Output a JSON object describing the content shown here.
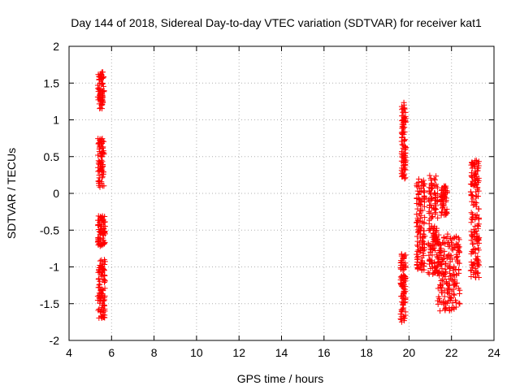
{
  "chart_data": {
    "type": "scatter",
    "title": "Day 144 of 2018, Sidereal Day-to-day VTEC variation (SDTVAR) for receiver kat1",
    "xlabel": "GPS time / hours",
    "ylabel": "SDTVAR / TECUs",
    "xlim": [
      4,
      24
    ],
    "ylim": [
      -2,
      2
    ],
    "xticks": [
      4,
      6,
      8,
      10,
      12,
      14,
      16,
      18,
      20,
      22,
      24
    ],
    "yticks": [
      -2,
      -1.5,
      -1,
      -0.5,
      0,
      0.5,
      1,
      1.5,
      2
    ],
    "ytick_labels": [
      "-2",
      "-1.5",
      "-1",
      "-0.5",
      "0",
      "0.5",
      "1",
      "1.5",
      "2"
    ],
    "grid": true,
    "marker": "+",
    "color": "#ff0000",
    "series": [
      {
        "name": "SDTVAR",
        "clusters": [
          {
            "x": [
              5.35,
              5.65
            ],
            "y": [
              1.15,
              1.65
            ]
          },
          {
            "x": [
              5.35,
              5.65
            ],
            "y": [
              0.08,
              0.75
            ]
          },
          {
            "x": [
              5.35,
              5.7
            ],
            "y": [
              -0.72,
              -0.3
            ]
          },
          {
            "x": [
              5.35,
              5.7
            ],
            "y": [
              -1.7,
              -0.9
            ]
          },
          {
            "x": [
              19.65,
              19.85
            ],
            "y": [
              0.2,
              1.27
            ]
          },
          {
            "x": [
              19.6,
              19.85
            ],
            "y": [
              -1.75,
              -0.8
            ]
          },
          {
            "x": [
              20.35,
              20.75
            ],
            "y": [
              -1.05,
              0.2
            ]
          },
          {
            "x": [
              20.9,
              21.35
            ],
            "y": [
              -1.1,
              0.25
            ]
          },
          {
            "x": [
              21.35,
              22.4
            ],
            "y": [
              -1.6,
              -0.55
            ]
          },
          {
            "x": [
              21.5,
              21.8
            ],
            "y": [
              -0.3,
              0.1
            ]
          },
          {
            "x": [
              22.9,
              23.3
            ],
            "y": [
              -1.15,
              0.45
            ]
          }
        ]
      }
    ]
  }
}
